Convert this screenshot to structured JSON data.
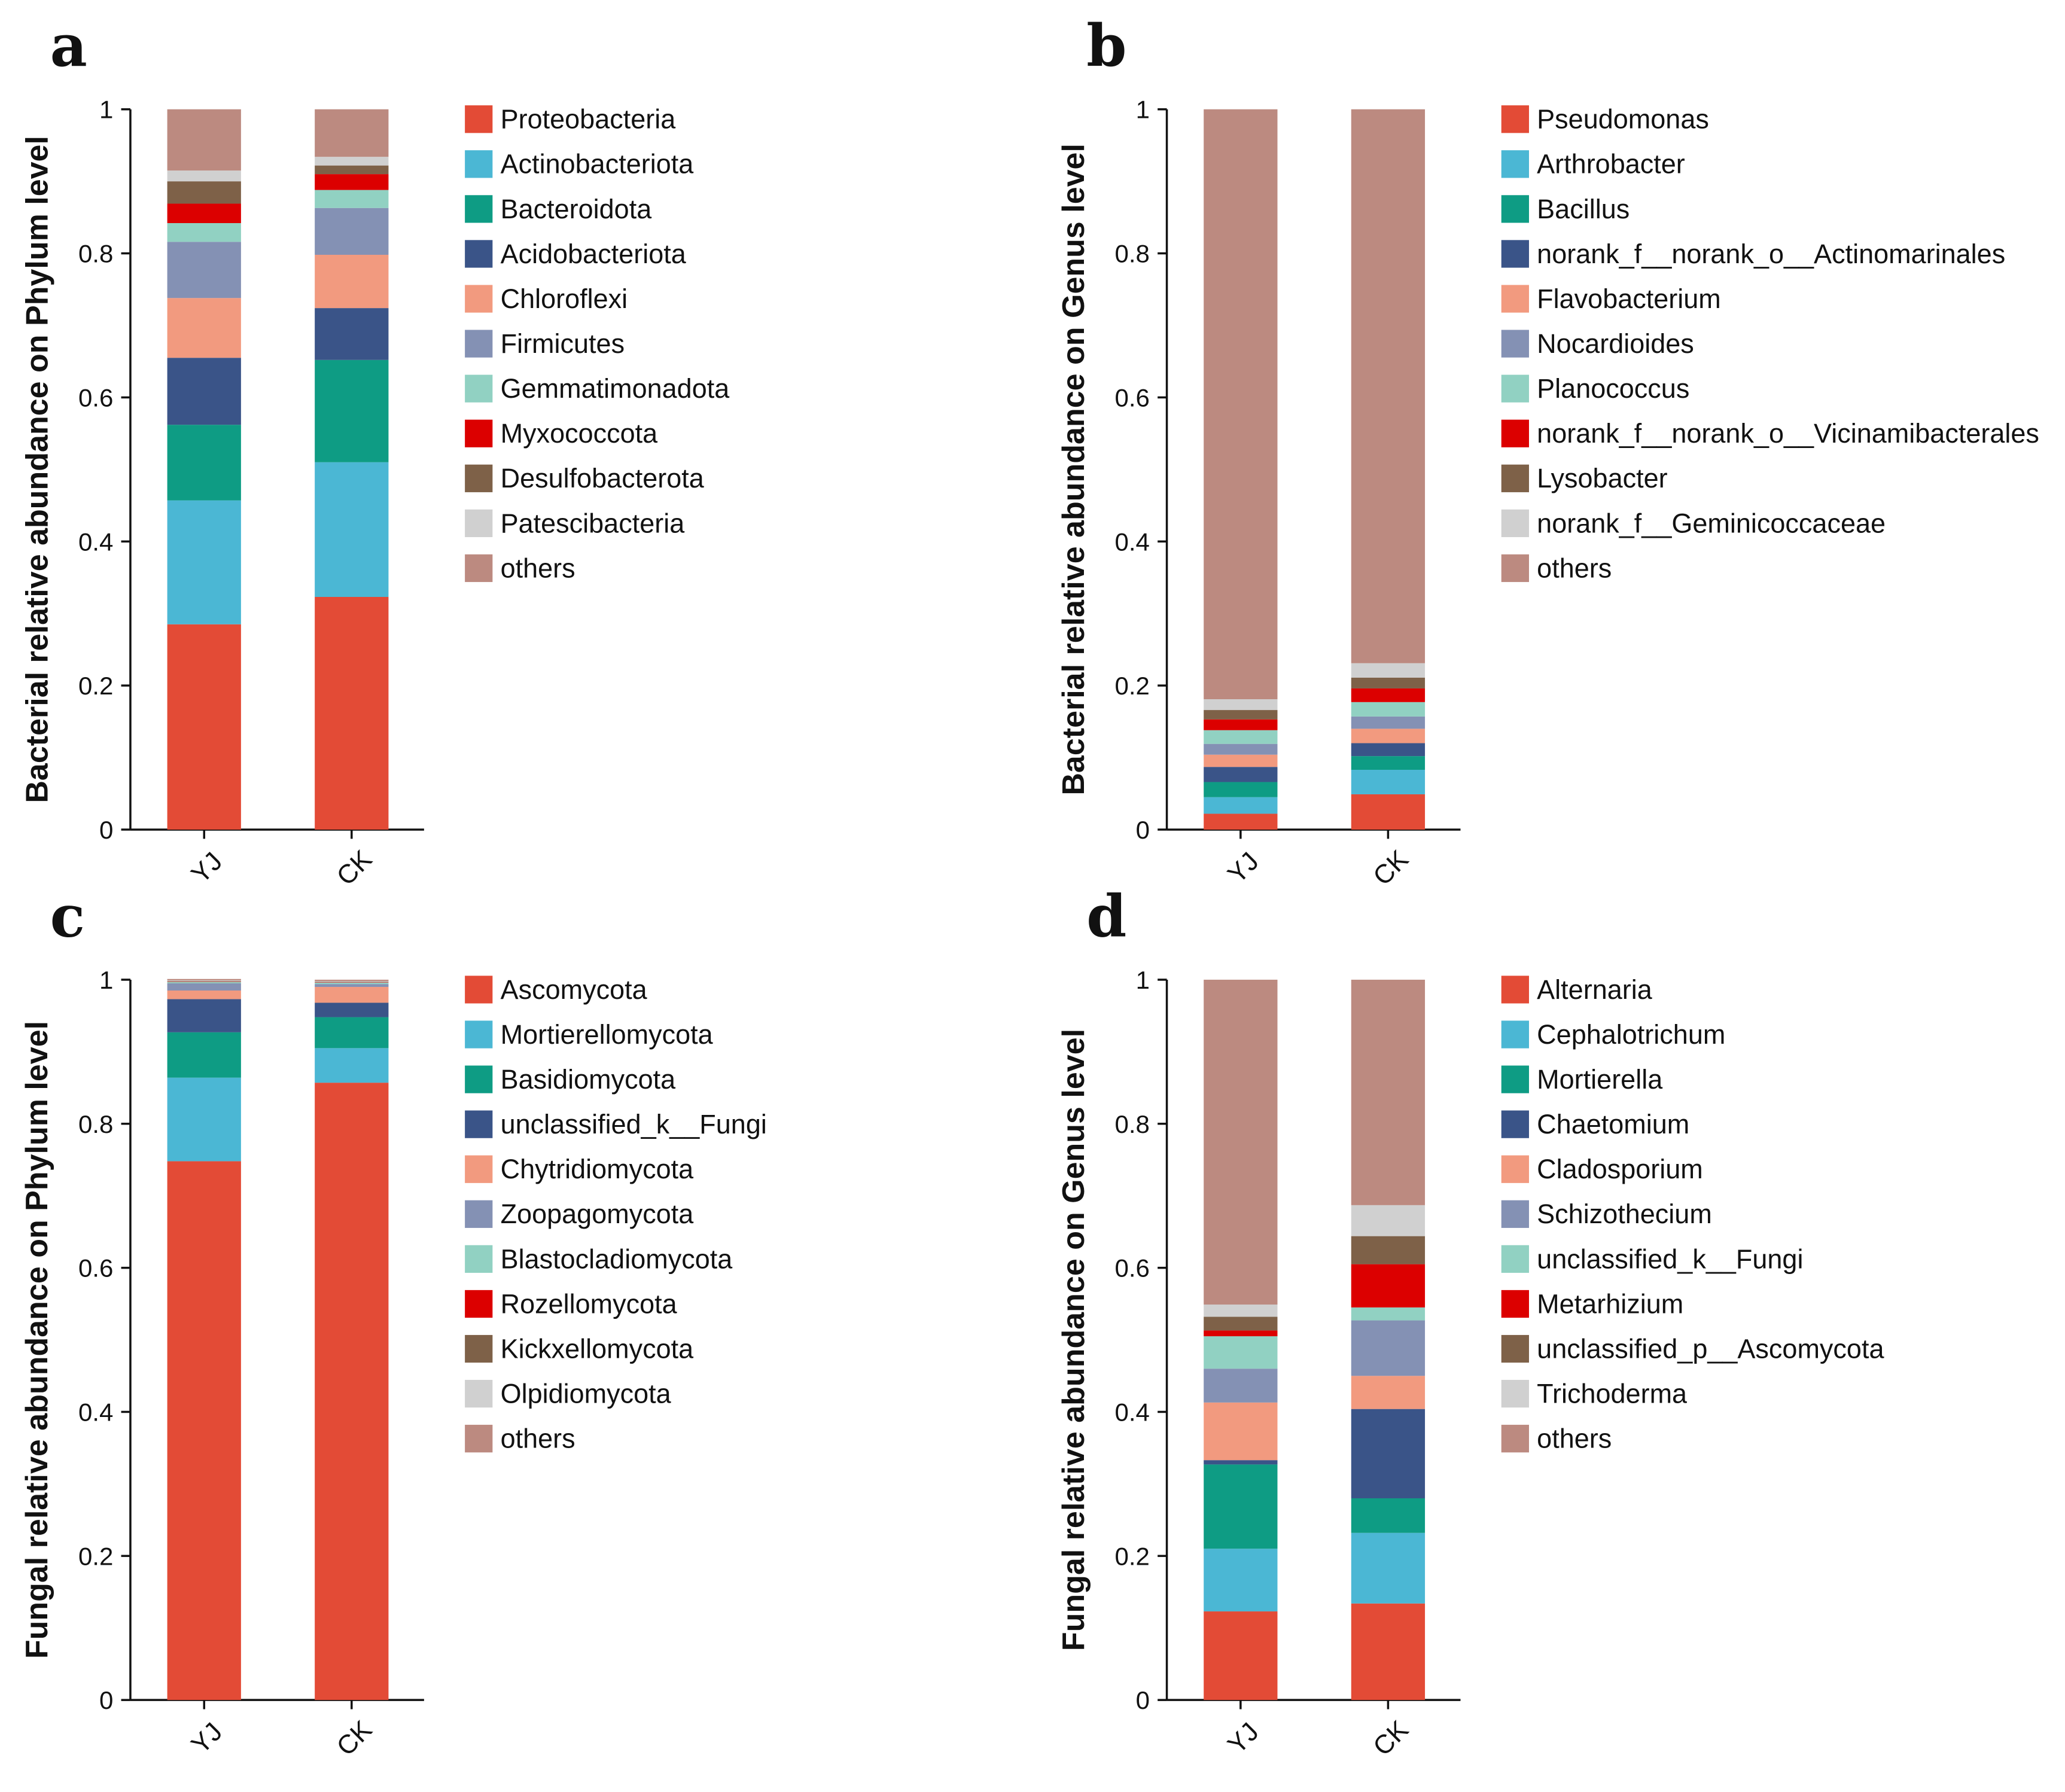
{
  "chart_data": [
    {
      "panel": "a",
      "type": "bar",
      "stacked": true,
      "title": "",
      "xlabel": "",
      "ylabel": "Bacterial relative abundance on Phylum level",
      "ylim": [
        0,
        1
      ],
      "yticks": [
        "0",
        "0.2",
        "0.4",
        "0.6",
        "0.8",
        "1"
      ],
      "categories": [
        "YJ",
        "CK"
      ],
      "series": [
        {
          "name": "Proteobacteria",
          "color": "#E34B36",
          "values": [
            0.285,
            0.323
          ]
        },
        {
          "name": "Actinobacteriota",
          "color": "#4BB7D4",
          "values": [
            0.172,
            0.187
          ]
        },
        {
          "name": "Bacteroidota",
          "color": "#0E9C84",
          "values": [
            0.105,
            0.142
          ]
        },
        {
          "name": "Acidobacteriota",
          "color": "#3A5488",
          "values": [
            0.093,
            0.072
          ]
        },
        {
          "name": "Chloroflexi",
          "color": "#F29A7F",
          "values": [
            0.083,
            0.074
          ]
        },
        {
          "name": "Firmicutes",
          "color": "#8491B4",
          "values": [
            0.078,
            0.065
          ]
        },
        {
          "name": "Gemmatimonadota",
          "color": "#91D1C2",
          "values": [
            0.026,
            0.025
          ]
        },
        {
          "name": "Myxococcota",
          "color": "#DC0000",
          "values": [
            0.027,
            0.022
          ]
        },
        {
          "name": "Desulfobacterota",
          "color": "#7E6148",
          "values": [
            0.031,
            0.012
          ]
        },
        {
          "name": "Patescibacteria",
          "color": "#D0D0D0",
          "values": [
            0.015,
            0.012
          ]
        },
        {
          "name": "others",
          "color": "#BC8A80",
          "values": [
            0.085,
            0.066
          ]
        }
      ]
    },
    {
      "panel": "b",
      "type": "bar",
      "stacked": true,
      "title": "",
      "xlabel": "",
      "ylabel": "Bacterial relative abundance on Genus level",
      "ylim": [
        0,
        1
      ],
      "yticks": [
        "0",
        "0.2",
        "0.4",
        "0.6",
        "0.8",
        "1"
      ],
      "categories": [
        "YJ",
        "CK"
      ],
      "series": [
        {
          "name": "Pseudomonas",
          "color": "#E34B36",
          "values": [
            0.022,
            0.049
          ]
        },
        {
          "name": "Arthrobacter",
          "color": "#4BB7D4",
          "values": [
            0.023,
            0.034
          ]
        },
        {
          "name": "Bacillus",
          "color": "#0E9C84",
          "values": [
            0.021,
            0.019
          ]
        },
        {
          "name": "norank_f__norank_o__Actinomarinales",
          "color": "#3A5488",
          "values": [
            0.021,
            0.018
          ]
        },
        {
          "name": "Flavobacterium",
          "color": "#F29A7F",
          "values": [
            0.017,
            0.02
          ]
        },
        {
          "name": "Nocardioides",
          "color": "#8491B4",
          "values": [
            0.015,
            0.017
          ]
        },
        {
          "name": "Planococcus",
          "color": "#91D1C2",
          "values": [
            0.019,
            0.02
          ]
        },
        {
          "name": "norank_f__norank_o__Vicinamibacterales",
          "color": "#DC0000",
          "values": [
            0.015,
            0.019
          ]
        },
        {
          "name": "Lysobacter",
          "color": "#7E6148",
          "values": [
            0.013,
            0.015
          ]
        },
        {
          "name": "norank_f__Geminicoccaceae",
          "color": "#D0D0D0",
          "values": [
            0.015,
            0.02
          ]
        },
        {
          "name": "others",
          "color": "#BC8A80",
          "values": [
            0.819,
            0.769
          ]
        }
      ]
    },
    {
      "panel": "c",
      "type": "bar",
      "stacked": true,
      "title": "",
      "xlabel": "",
      "ylabel": "Fungal relative abundance on Phylum level",
      "ylim": [
        0,
        1
      ],
      "yticks": [
        "0",
        "0.2",
        "0.4",
        "0.6",
        "0.8",
        "1"
      ],
      "categories": [
        "YJ",
        "CK"
      ],
      "series": [
        {
          "name": "Ascomycota",
          "color": "#E34B36",
          "values": [
            0.748,
            0.857
          ]
        },
        {
          "name": "Mortierellomycota",
          "color": "#4BB7D4",
          "values": [
            0.116,
            0.048
          ]
        },
        {
          "name": "Basidiomycota",
          "color": "#0E9C84",
          "values": [
            0.063,
            0.043
          ]
        },
        {
          "name": "unclassified_k__Fungi",
          "color": "#3A5488",
          "values": [
            0.046,
            0.02
          ]
        },
        {
          "name": "Chytridiomycota",
          "color": "#F29A7F",
          "values": [
            0.012,
            0.022
          ]
        },
        {
          "name": "Zoopagomycota",
          "color": "#8491B4",
          "values": [
            0.01,
            0.004
          ]
        },
        {
          "name": "Blastocladiomycota",
          "color": "#91D1C2",
          "values": [
            0.002,
            0.002
          ]
        },
        {
          "name": "Rozellomycota",
          "color": "#DC0000",
          "values": [
            0.0005,
            0.0005
          ]
        },
        {
          "name": "Kickxellomycota",
          "color": "#7E6148",
          "values": [
            0.0005,
            0.0005
          ]
        },
        {
          "name": "Olpidiomycota",
          "color": "#D0D0D0",
          "values": [
            0.001,
            0.001
          ]
        },
        {
          "name": "others",
          "color": "#BC8A80",
          "values": [
            0.002,
            0.002
          ]
        }
      ]
    },
    {
      "panel": "d",
      "type": "bar",
      "stacked": true,
      "title": "",
      "xlabel": "",
      "ylabel": "Fungal relative abundance on Genus level",
      "ylim": [
        0,
        1
      ],
      "yticks": [
        "0",
        "0.2",
        "0.4",
        "0.6",
        "0.8",
        "1"
      ],
      "categories": [
        "YJ",
        "CK"
      ],
      "series": [
        {
          "name": "Alternaria",
          "color": "#E34B36",
          "values": [
            0.123,
            0.134
          ]
        },
        {
          "name": "Cephalotrichum",
          "color": "#4BB7D4",
          "values": [
            0.087,
            0.098
          ]
        },
        {
          "name": "Mortierella",
          "color": "#0E9C84",
          "values": [
            0.117,
            0.048
          ]
        },
        {
          "name": "Chaetomium",
          "color": "#3A5488",
          "values": [
            0.006,
            0.124
          ]
        },
        {
          "name": "Cladosporium",
          "color": "#F29A7F",
          "values": [
            0.08,
            0.046
          ]
        },
        {
          "name": "Schizothecium",
          "color": "#8491B4",
          "values": [
            0.047,
            0.077
          ]
        },
        {
          "name": "unclassified_k__Fungi",
          "color": "#91D1C2",
          "values": [
            0.045,
            0.018
          ]
        },
        {
          "name": "Metarhizium",
          "color": "#DC0000",
          "values": [
            0.008,
            0.06
          ]
        },
        {
          "name": "unclassified_p__Ascomycota",
          "color": "#7E6148",
          "values": [
            0.019,
            0.039
          ]
        },
        {
          "name": "Trichoderma",
          "color": "#D0D0D0",
          "values": [
            0.017,
            0.043
          ]
        },
        {
          "name": "others",
          "color": "#BC8A80",
          "values": [
            0.451,
            0.313
          ]
        }
      ]
    }
  ]
}
